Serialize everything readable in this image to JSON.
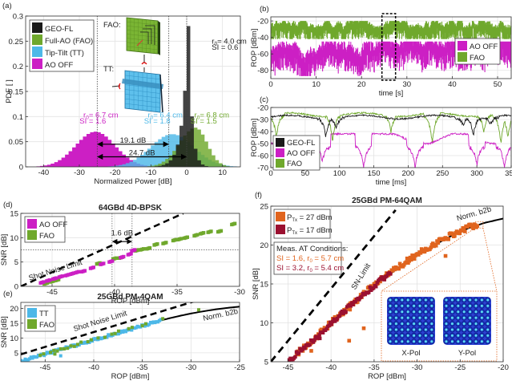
{
  "colors": {
    "geo": "#1a1a1a",
    "fao": "#6fa82c",
    "tt": "#4db8e8",
    "aooff": "#cc1fc4",
    "p27": "#e0641e",
    "p17": "#9b1030",
    "meas1": "#e0641e",
    "meas2": "#9b1030"
  },
  "chart_data": [
    {
      "id": "a",
      "panel_label": "(a)",
      "type": "bar",
      "subtype": "histogram",
      "xlabel": "Normalized Power [dB]",
      "ylabel": "PDF [ ]",
      "xlim": [
        -45,
        15
      ],
      "ylim": [
        0,
        0.3
      ],
      "xticks": [
        -40,
        -30,
        -20,
        -10,
        0,
        10
      ],
      "yticks": [
        0,
        0.05,
        0.1,
        0.15,
        0.2,
        0.25,
        0.3
      ],
      "ytick_labels": [
        "0",
        "0.05",
        "0.1",
        "0.15",
        "0.2",
        "0.25",
        "0.3"
      ],
      "grid": true,
      "legend": {
        "position": "top-left",
        "entries": [
          "GEO-FL",
          "Full-AO (FAO)",
          "Tip-Tilt (TT)",
          "AO OFF"
        ]
      },
      "series": [
        {
          "name": "AO OFF",
          "color_key": "aooff",
          "mean": -25.5,
          "sigma": 5.5,
          "peak": 0.07,
          "r0": "r0= 6.7 cm",
          "si": "SI = 1.6"
        },
        {
          "name": "Tip-Tilt (TT)",
          "color_key": "tt",
          "mean": -4,
          "sigma": 6.0,
          "peak": 0.065,
          "r0": "r0= 6.4 cm",
          "si": "SI = 1.8"
        },
        {
          "name": "Full-AO (FAO)",
          "color_key": "fao",
          "mean": 2.5,
          "sigma": 3.2,
          "peak": 0.078,
          "r0": "r0= 6.8 cm",
          "si": "SI = 1.5"
        },
        {
          "name": "GEO-FL",
          "color_key": "geo",
          "mean": 0.5,
          "sigma": 1.3,
          "peak": 0.28,
          "r0": "r0= 4.0 cm",
          "si": "SI = 0.6"
        }
      ],
      "vlines": [
        -25,
        -5,
        0
      ],
      "annotations": [
        {
          "text": "19.1 dB",
          "from": -25,
          "to": -5,
          "y": 0.045
        },
        {
          "text": "24.7 dB",
          "from": -25,
          "to": 0,
          "y": 0.02
        }
      ],
      "inset_labels": [
        "FAO:",
        "TT:"
      ]
    },
    {
      "id": "b",
      "panel_label": "(b)",
      "type": "line",
      "xlabel": "time [s]",
      "ylabel": "ROP [dBm]",
      "xlim": [
        0,
        53
      ],
      "ylim": [
        -90,
        -15
      ],
      "xticks": [
        0,
        10,
        20,
        30,
        40,
        50
      ],
      "yticks": [
        -80,
        -60,
        -40,
        -20
      ],
      "grid": true,
      "legend": {
        "position": "right",
        "entries": [
          "AO OFF",
          "FAO"
        ]
      },
      "series": [
        {
          "name": "FAO",
          "color_key": "fao",
          "band": [
            -42,
            -20
          ],
          "typical": -24
        },
        {
          "name": "AO OFF",
          "color_key": "aooff",
          "band": [
            -87,
            -45
          ],
          "typical": -62
        }
      ],
      "highlight_box": [
        24.5,
        27.5
      ]
    },
    {
      "id": "c",
      "panel_label": "(c)",
      "type": "line",
      "xlabel": "time [ms]",
      "ylabel": "ROP [dBm]",
      "xlim": [
        0,
        350
      ],
      "ylim": [
        -70,
        -20
      ],
      "xticks": [
        0,
        50,
        100,
        150,
        200,
        250,
        300,
        350
      ],
      "yticks": [
        -70,
        -60,
        -50,
        -40,
        -30,
        -20
      ],
      "grid": true,
      "legend": {
        "position": "bottom-left",
        "entries": [
          "GEO-FL",
          "AO OFF",
          "FAO"
        ]
      },
      "series": [
        {
          "name": "GEO-FL",
          "color_key": "geo",
          "typical": -28,
          "dips": [
            [
              80,
              -45
            ],
            [
              95,
              -38
            ],
            [
              295,
              -43
            ],
            [
              280,
              -35
            ],
            [
              320,
              -34
            ]
          ]
        },
        {
          "name": "FAO",
          "color_key": "fao",
          "typical": -26,
          "dips": [
            [
              8,
              -45
            ],
            [
              90,
              -48
            ],
            [
              175,
              -40
            ],
            [
              235,
              -50
            ],
            [
              310,
              -40
            ],
            [
              335,
              -50
            ],
            [
              345,
              -45
            ]
          ]
        },
        {
          "name": "AO OFF",
          "color_key": "aooff",
          "typical": -52,
          "peaks": [
            [
              108,
              -42
            ],
            [
              160,
              -44
            ],
            [
              275,
              -46
            ]
          ],
          "dips": [
            [
              38,
              -68
            ],
            [
              75,
              -65
            ],
            [
              135,
              -70
            ],
            [
              210,
              -70
            ],
            [
              300,
              -68
            ],
            [
              340,
              -70
            ]
          ]
        }
      ]
    },
    {
      "id": "d",
      "panel_label": "(d)",
      "type": "scatter",
      "title": "64GBd 4D-BPSK",
      "xlabel": "ROP [dBm]",
      "ylabel": "SNR [dB]",
      "xlim": [
        -47.5,
        -30
      ],
      "ylim": [
        0,
        15
      ],
      "xticks": [
        -45,
        -40,
        -35,
        -30
      ],
      "yticks": [
        0,
        5,
        10,
        15
      ],
      "grid": true,
      "legend": {
        "position": "top-left",
        "entries": [
          "AO OFF",
          "FAO"
        ]
      },
      "series": [
        {
          "name": "AO OFF",
          "color_key": "aooff",
          "x": [
            -45.8,
            -45.3,
            -44.8,
            -44.3,
            -43.8,
            -43.4,
            -43.0,
            -42.5,
            -41.8,
            -41.0,
            -40.3,
            -39.4,
            -38.8,
            -38.5
          ],
          "y": [
            0.8,
            1.2,
            1.6,
            2.0,
            2.3,
            2.6,
            2.9,
            3.1,
            3.8,
            4.6,
            5.1,
            6.0,
            6.6,
            7.4
          ]
        },
        {
          "name": "FAO",
          "color_key": "fao",
          "x": [
            -45.5,
            -45.0,
            -44.6,
            -41.3,
            -40.0,
            -39.5,
            -38.2,
            -37.8,
            -37.3,
            -36.7,
            -36.0,
            -35.2,
            -34.8,
            -34.3,
            -33.5,
            -33.0,
            -32.4,
            -31.6,
            -30.5
          ],
          "y": [
            0.6,
            1.0,
            1.3,
            4.7,
            5.7,
            5.9,
            7.4,
            7.6,
            7.8,
            8.6,
            8.9,
            9.5,
            9.7,
            10.0,
            10.5,
            10.9,
            11.2,
            11.3,
            12.8
          ]
        },
        {
          "name": "Shot Noise Limit",
          "color_key": "geo",
          "style": "dashed",
          "x": [
            -47.5,
            -34.5
          ],
          "y": [
            0,
            15
          ]
        }
      ],
      "hlines": [
        7.5
      ],
      "vlines": [
        -40.2,
        -38.6
      ],
      "annotations": [
        {
          "text": "1.6 dB"
        },
        {
          "text": "Shot Noise Limit"
        }
      ]
    },
    {
      "id": "e",
      "panel_label": "(e)",
      "type": "scatter",
      "title": "25GBd PM-4QAM",
      "xlabel": "ROP [dBm]",
      "ylabel": "SNR [dB]",
      "xlim": [
        -47.5,
        -25
      ],
      "ylim": [
        2,
        22
      ],
      "xticks": [
        -45,
        -40,
        -35,
        -30,
        -25
      ],
      "yticks": [
        5,
        10,
        15,
        20
      ],
      "grid": true,
      "legend": {
        "position": "top-left",
        "entries": [
          "TT",
          "FAO"
        ]
      },
      "series": [
        {
          "name": "TT",
          "color_key": "tt",
          "x_range": [
            -47.5,
            -33
          ],
          "y_range": [
            2.3,
            16
          ]
        },
        {
          "name": "FAO",
          "color_key": "fao",
          "x_range": [
            -45.5,
            -32.5
          ],
          "y_range": [
            4.5,
            17
          ],
          "extra": [
            [
              -44,
              4.6
            ],
            [
              -29.2,
              19.5
            ]
          ]
        },
        {
          "name": "Shot Noise Limit",
          "color_key": "geo",
          "style": "dashed",
          "x": [
            -47.5,
            -29.5
          ],
          "y": [
            4.5,
            22.5
          ]
        },
        {
          "name": "Norm. b2b",
          "color_key": "geo",
          "style": "solid",
          "x": [
            -33,
            -30,
            -27.5,
            -25
          ],
          "y": [
            16,
            18.5,
            20.3,
            21.5
          ]
        }
      ],
      "outlier_tt": [
        [
          -43.4,
          4.0
        ]
      ],
      "annotations": [
        {
          "text": "Shot Noise Limit"
        },
        {
          "text": "Norm. b2b"
        }
      ]
    },
    {
      "id": "f",
      "panel_label": "(f)",
      "type": "scatter",
      "title": "25GBd PM-64QAM",
      "xlabel": "ROP [dBm]",
      "ylabel": "SNR [dB]",
      "xlim": [
        -47,
        -20
      ],
      "ylim": [
        5,
        25
      ],
      "xticks": [
        -45,
        -40,
        -35,
        -30,
        -25,
        -20
      ],
      "yticks": [
        5,
        10,
        15,
        20,
        25
      ],
      "grid": true,
      "legend": {
        "position": "top-left",
        "entries": [
          "PTx = 27 dBm",
          "PTx = 17 dBm"
        ]
      },
      "legend_labels": [
        {
          "p": "P",
          "sub": "Tx",
          "rest": " = 27 dBm"
        },
        {
          "p": "P",
          "sub": "Tx",
          "rest": " = 17 dBm"
        }
      ],
      "conditions_title": "Meas. AT Conditions:",
      "conditions": [
        {
          "pre": "SI = 1.6, r",
          "sub": "0",
          "post": " = 5.7 cm",
          "color_key": "meas1"
        },
        {
          "pre": "SI = 3.2, r",
          "sub": "0",
          "post": " = 5.4 cm",
          "color_key": "meas2"
        }
      ],
      "series": [
        {
          "name": "Norm. b2b",
          "color_key": "geo",
          "style": "solid",
          "x": [
            -45,
            -42,
            -40,
            -38,
            -36,
            -34,
            -32,
            -30,
            -28,
            -26,
            -24,
            -22,
            -20
          ],
          "y": [
            5,
            7.8,
            9.9,
            11.9,
            13.8,
            15.6,
            17.2,
            18.7,
            20.0,
            21.2,
            22.2,
            22.9,
            23.4
          ]
        },
        {
          "name": "SN-Limit",
          "color_key": "geo",
          "style": "dashed",
          "x": [
            -47,
            -32.5
          ],
          "y": [
            5,
            24.5
          ]
        },
        {
          "name": "PTx = 27 dBm",
          "color_key": "p27",
          "x_range": [
            -44,
            -23
          ],
          "outliers": [
            [
              -42.3,
              6.4
            ],
            [
              -37.9,
              7.7
            ],
            [
              -36.2,
              9.3
            ],
            [
              -37.8,
              11.7
            ],
            [
              -26.7,
              18.6
            ]
          ]
        },
        {
          "name": "PTx = 17 dBm",
          "color_key": "p17",
          "x_range": [
            -45,
            -33
          ],
          "outliers": [
            [
              -41.3,
              8.0
            ]
          ]
        }
      ],
      "annotations": [
        {
          "text": "SN-Limit"
        },
        {
          "text": "Norm. b2b"
        }
      ],
      "inset": {
        "labels": [
          "X-Pol",
          "Y-Pol"
        ],
        "grid": 8,
        "zoom_point": [
          -22.8,
          22.6
        ]
      }
    }
  ]
}
